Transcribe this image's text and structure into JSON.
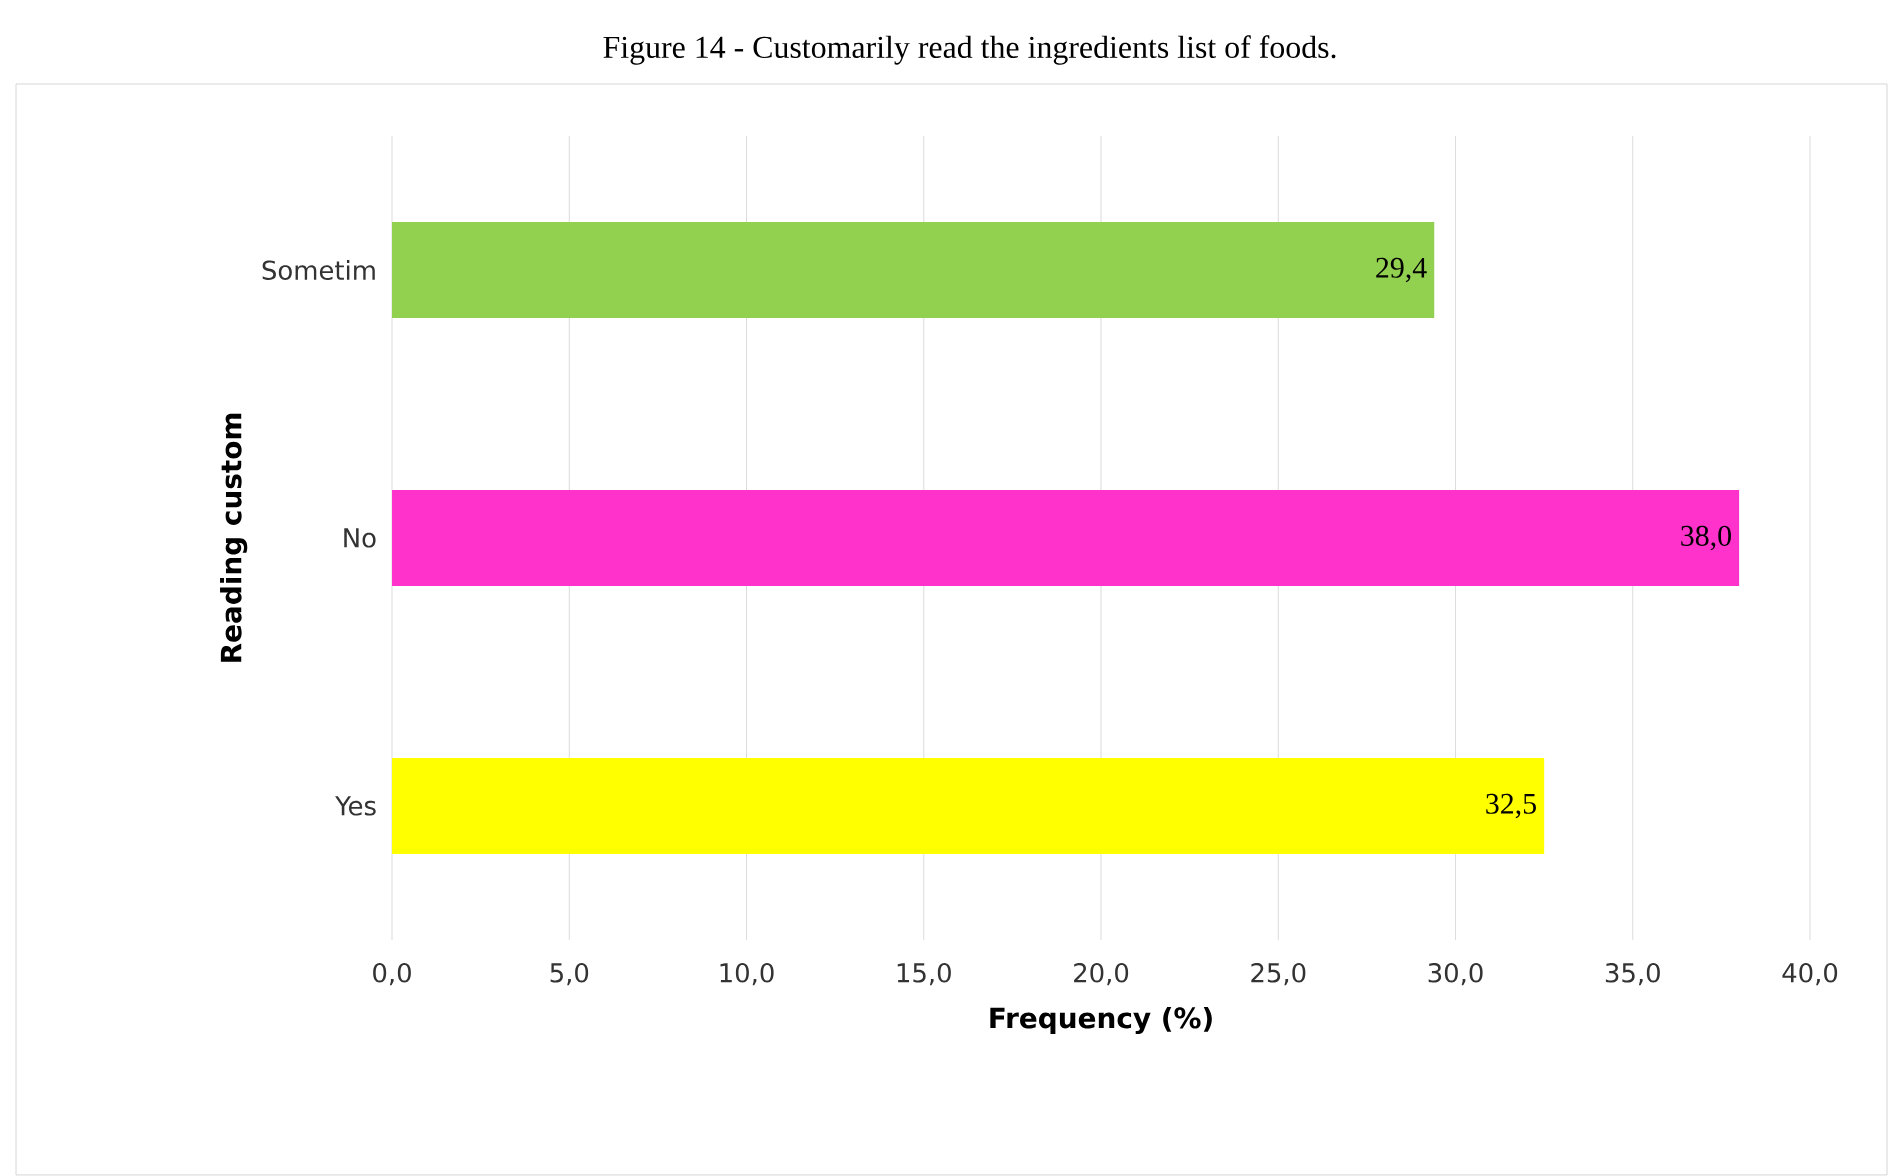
{
  "chart_data": {
    "type": "bar",
    "orientation": "horizontal",
    "title": "Figure 14 - Customarily read the ingredients list of foods.",
    "xlabel": "Frequency (%)",
    "ylabel": "Reading custom",
    "categories": [
      "Sometim",
      "No",
      "Yes"
    ],
    "values": [
      29.4,
      38.0,
      32.5
    ],
    "colors": [
      "#92d050",
      "#ff33cc",
      "#ffff00"
    ],
    "value_labels": [
      "29,4",
      "38,0",
      "32,5"
    ],
    "xlim": [
      0,
      40
    ],
    "xticks": [
      {
        "value": 0,
        "label": "0,0"
      },
      {
        "value": 5,
        "label": "5,0"
      },
      {
        "value": 10,
        "label": "10,0"
      },
      {
        "value": 15,
        "label": "15,0"
      },
      {
        "value": 20,
        "label": "20,0"
      },
      {
        "value": 25,
        "label": "25,0"
      },
      {
        "value": 30,
        "label": "30,0"
      },
      {
        "value": 35,
        "label": "35,0"
      },
      {
        "value": 40,
        "label": "40,0"
      }
    ],
    "grid": "x"
  }
}
